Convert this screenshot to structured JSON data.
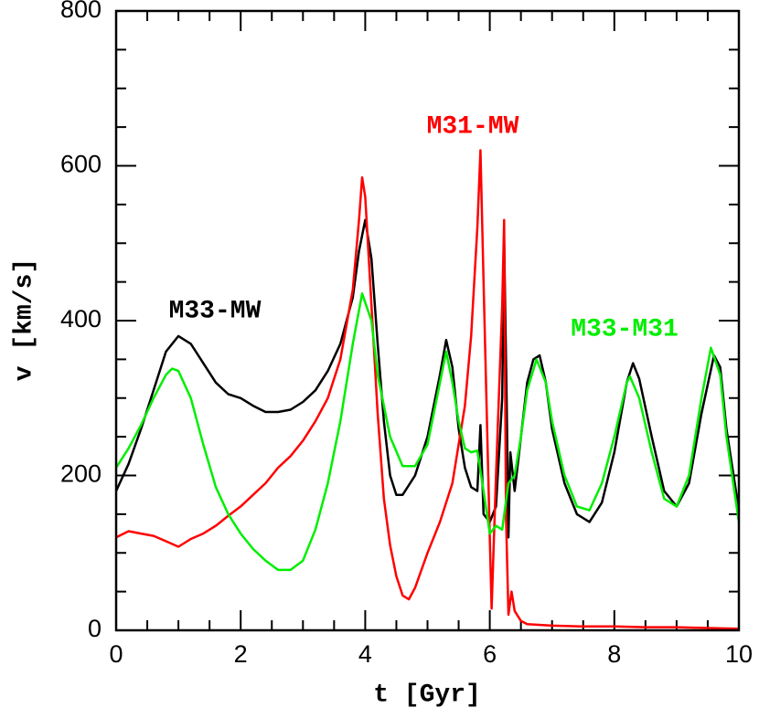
{
  "chart_data": {
    "type": "line",
    "xlabel": "t [Gyr]",
    "ylabel": "v [km/s]",
    "xlim": [
      0,
      10
    ],
    "ylim": [
      0,
      800
    ],
    "xticks": [
      0,
      2,
      4,
      6,
      8,
      10
    ],
    "yticks": [
      0,
      200,
      400,
      600,
      800
    ],
    "xminorticks": [
      0.5,
      1,
      1.5,
      2.5,
      3,
      3.5,
      4.5,
      5,
      5.5,
      6.5,
      7,
      7.5,
      8.5,
      9,
      9.5
    ],
    "yminorticks": [
      50,
      100,
      150,
      250,
      300,
      350,
      450,
      500,
      550,
      650,
      700,
      750
    ],
    "series": [
      {
        "name": "M33-MW",
        "color": "#000000",
        "x": [
          0,
          0.2,
          0.4,
          0.6,
          0.8,
          1.0,
          1.2,
          1.4,
          1.6,
          1.8,
          2.0,
          2.2,
          2.4,
          2.6,
          2.8,
          3.0,
          3.2,
          3.4,
          3.6,
          3.8,
          3.9,
          4.0,
          4.1,
          4.2,
          4.3,
          4.4,
          4.5,
          4.6,
          4.8,
          5.0,
          5.2,
          5.3,
          5.4,
          5.5,
          5.6,
          5.7,
          5.8,
          5.85,
          5.9,
          6.0,
          6.1,
          6.2,
          6.23,
          6.27,
          6.3,
          6.33,
          6.4,
          6.5,
          6.6,
          6.7,
          6.8,
          6.9,
          7.0,
          7.2,
          7.4,
          7.6,
          7.8,
          8.0,
          8.2,
          8.3,
          8.4,
          8.6,
          8.8,
          9.0,
          9.2,
          9.4,
          9.6,
          9.7,
          9.8,
          10.0
        ],
        "values": [
          180,
          215,
          260,
          310,
          360,
          380,
          370,
          345,
          320,
          305,
          300,
          290,
          282,
          282,
          285,
          295,
          310,
          335,
          370,
          430,
          490,
          530,
          480,
          370,
          270,
          200,
          175,
          175,
          200,
          250,
          330,
          375,
          340,
          260,
          210,
          185,
          180,
          265,
          150,
          140,
          160,
          300,
          505,
          300,
          120,
          230,
          180,
          250,
          320,
          350,
          355,
          320,
          260,
          190,
          150,
          140,
          165,
          230,
          320,
          345,
          325,
          250,
          180,
          160,
          190,
          280,
          355,
          340,
          260,
          155
        ]
      },
      {
        "name": "M31-MW",
        "color": "#ff0000",
        "x": [
          0,
          0.2,
          0.4,
          0.6,
          0.8,
          1.0,
          1.2,
          1.4,
          1.6,
          1.8,
          2.0,
          2.2,
          2.4,
          2.6,
          2.8,
          3.0,
          3.2,
          3.4,
          3.6,
          3.8,
          3.9,
          3.95,
          4.0,
          4.1,
          4.2,
          4.3,
          4.4,
          4.5,
          4.6,
          4.7,
          4.8,
          5.0,
          5.2,
          5.4,
          5.6,
          5.7,
          5.8,
          5.85,
          5.9,
          6.0,
          6.03,
          6.1,
          6.2,
          6.23,
          6.26,
          6.3,
          6.35,
          6.4,
          6.5,
          6.6,
          7.0,
          7.5,
          8.0,
          8.5,
          9.0,
          9.5,
          10.0
        ],
        "values": [
          120,
          128,
          125,
          122,
          115,
          108,
          118,
          125,
          135,
          148,
          160,
          175,
          190,
          210,
          225,
          245,
          270,
          300,
          350,
          440,
          530,
          585,
          560,
          420,
          280,
          170,
          110,
          70,
          45,
          40,
          55,
          100,
          140,
          190,
          290,
          380,
          520,
          620,
          450,
          120,
          28,
          200,
          420,
          530,
          150,
          20,
          50,
          25,
          12,
          8,
          6,
          5,
          5,
          4,
          4,
          3,
          2
        ]
      },
      {
        "name": "M33-M31",
        "color": "#00ee00",
        "x": [
          0,
          0.2,
          0.4,
          0.6,
          0.8,
          0.9,
          1.0,
          1.2,
          1.4,
          1.6,
          1.8,
          2.0,
          2.2,
          2.4,
          2.6,
          2.8,
          3.0,
          3.2,
          3.4,
          3.6,
          3.8,
          3.95,
          4.1,
          4.2,
          4.4,
          4.6,
          4.8,
          5.0,
          5.2,
          5.3,
          5.4,
          5.5,
          5.6,
          5.7,
          5.8,
          5.9,
          6.0,
          6.1,
          6.2,
          6.3,
          6.4,
          6.5,
          6.6,
          6.75,
          6.9,
          7.0,
          7.2,
          7.4,
          7.6,
          7.8,
          8.0,
          8.2,
          8.25,
          8.4,
          8.6,
          8.8,
          9.0,
          9.2,
          9.4,
          9.55,
          9.7,
          9.8,
          10.0
        ],
        "values": [
          210,
          235,
          265,
          300,
          330,
          338,
          335,
          300,
          240,
          185,
          150,
          125,
          105,
          90,
          78,
          78,
          90,
          130,
          190,
          270,
          370,
          435,
          400,
          330,
          250,
          212,
          212,
          240,
          320,
          360,
          320,
          270,
          235,
          230,
          232,
          180,
          125,
          135,
          130,
          190,
          200,
          250,
          310,
          350,
          320,
          270,
          200,
          160,
          155,
          190,
          250,
          320,
          328,
          300,
          230,
          170,
          160,
          200,
          300,
          365,
          330,
          250,
          140
        ]
      }
    ]
  }
}
